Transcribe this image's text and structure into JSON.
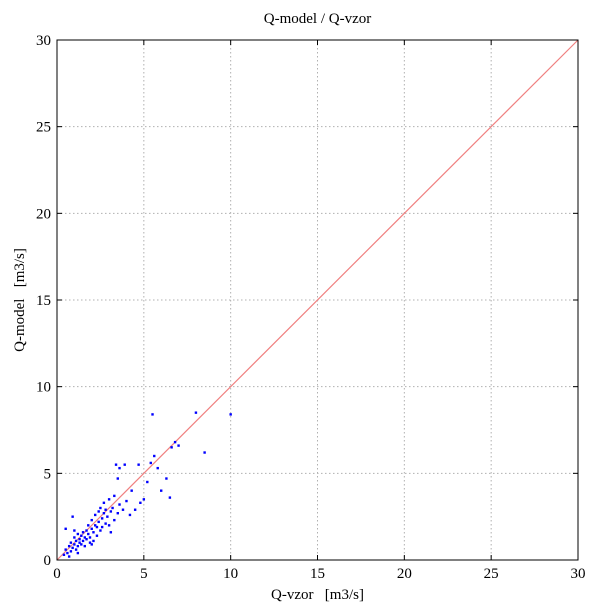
{
  "chart_data": {
    "type": "scatter",
    "title": "Q-model / Q-vzor",
    "xlabel": "Q-vzor   [m3/s]",
    "ylabel": "Q-model   [m3/s]",
    "xlim": [
      0,
      30
    ],
    "ylim": [
      0,
      30
    ],
    "xticks": [
      "0",
      "5",
      "10",
      "15",
      "20",
      "25",
      "30"
    ],
    "yticks": [
      "0",
      "5",
      "10",
      "15",
      "20",
      "25",
      "30"
    ],
    "grid": true,
    "colors": {
      "points": "#0000ff",
      "reference_line": "#f08080",
      "grid": "#b0b0b0"
    },
    "reference_line": {
      "from": [
        0,
        0
      ],
      "to": [
        30,
        30
      ]
    },
    "series": [
      {
        "points": [
          [
            0.4,
            0.3
          ],
          [
            0.5,
            0.6
          ],
          [
            0.6,
            0.4
          ],
          [
            0.7,
            0.8
          ],
          [
            0.8,
            0.5
          ],
          [
            0.8,
            1.0
          ],
          [
            0.9,
            0.7
          ],
          [
            1.0,
            0.9
          ],
          [
            1.0,
            1.3
          ],
          [
            1.1,
            0.6
          ],
          [
            1.1,
            1.1
          ],
          [
            1.2,
            1.5
          ],
          [
            1.2,
            0.8
          ],
          [
            1.3,
            1.0
          ],
          [
            1.3,
            1.2
          ],
          [
            1.4,
            1.4
          ],
          [
            1.4,
            0.9
          ],
          [
            1.5,
            1.6
          ],
          [
            1.5,
            1.1
          ],
          [
            1.6,
            1.3
          ],
          [
            1.6,
            0.8
          ],
          [
            1.7,
            1.7
          ],
          [
            1.7,
            1.2
          ],
          [
            1.8,
            1.5
          ],
          [
            1.8,
            2.0
          ],
          [
            1.9,
            1.3
          ],
          [
            1.9,
            1.0
          ],
          [
            2.0,
            1.8
          ],
          [
            2.0,
            2.3
          ],
          [
            2.1,
            1.6
          ],
          [
            2.1,
            1.1
          ],
          [
            2.2,
            2.0
          ],
          [
            2.2,
            2.6
          ],
          [
            2.3,
            1.4
          ],
          [
            2.3,
            1.9
          ],
          [
            2.4,
            2.2
          ],
          [
            2.4,
            2.8
          ],
          [
            2.5,
            1.7
          ],
          [
            2.5,
            3.0
          ],
          [
            2.6,
            2.4
          ],
          [
            2.6,
            1.9
          ],
          [
            2.7,
            2.7
          ],
          [
            2.7,
            3.3
          ],
          [
            2.8,
            2.1
          ],
          [
            2.8,
            2.9
          ],
          [
            2.9,
            2.5
          ],
          [
            3.0,
            3.5
          ],
          [
            3.0,
            2.0
          ],
          [
            3.1,
            2.8
          ],
          [
            3.1,
            1.6
          ],
          [
            3.2,
            3.0
          ],
          [
            3.3,
            2.3
          ],
          [
            3.3,
            3.7
          ],
          [
            3.4,
            5.5
          ],
          [
            3.5,
            2.7
          ],
          [
            3.5,
            4.7
          ],
          [
            3.6,
            5.3
          ],
          [
            3.6,
            3.2
          ],
          [
            3.8,
            2.9
          ],
          [
            3.9,
            5.5
          ],
          [
            4.0,
            3.4
          ],
          [
            4.2,
            2.6
          ],
          [
            4.3,
            4.0
          ],
          [
            4.5,
            2.9
          ],
          [
            4.7,
            5.5
          ],
          [
            4.8,
            3.3
          ],
          [
            5.0,
            3.5
          ],
          [
            5.2,
            4.5
          ],
          [
            5.4,
            5.6
          ],
          [
            5.5,
            8.4
          ],
          [
            5.6,
            6.0
          ],
          [
            5.8,
            5.3
          ],
          [
            6.0,
            4.0
          ],
          [
            6.3,
            4.7
          ],
          [
            6.5,
            3.6
          ],
          [
            6.6,
            6.5
          ],
          [
            6.8,
            6.8
          ],
          [
            7.0,
            6.6
          ],
          [
            8.0,
            8.5
          ],
          [
            8.5,
            6.2
          ],
          [
            10.0,
            8.4
          ],
          [
            0.5,
            1.8
          ],
          [
            0.9,
            2.5
          ],
          [
            1.2,
            0.4
          ],
          [
            0.7,
            0.2
          ],
          [
            1.0,
            1.7
          ],
          [
            2.0,
            0.9
          ]
        ]
      }
    ]
  }
}
